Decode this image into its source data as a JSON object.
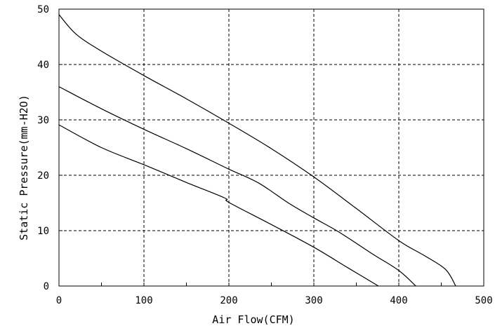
{
  "chart_data": {
    "type": "line",
    "title": "",
    "xlabel": "Air Flow(CFM)",
    "ylabel": "Static Pressure(mm-H2O)",
    "xlim": [
      0,
      500
    ],
    "ylim": [
      0,
      50
    ],
    "xticks": [
      "0",
      "100",
      "200",
      "300",
      "400",
      "500"
    ],
    "yticks": [
      "0",
      "10",
      "20",
      "30",
      "40",
      "50"
    ],
    "grid": true,
    "grid_style": "dashed",
    "line_color": "#000000",
    "series": [
      {
        "x": [
          0,
          20,
          50,
          100,
          150,
          200,
          250,
          300,
          350,
          400,
          430,
          455,
          467
        ],
        "y": [
          49,
          45.5,
          42.4,
          38,
          33.8,
          29.4,
          24.8,
          19.7,
          14,
          8.2,
          5.5,
          3,
          0
        ]
      },
      {
        "x": [
          0,
          50,
          100,
          150,
          200,
          235,
          270,
          300,
          330,
          370,
          400,
          420
        ],
        "y": [
          36,
          32,
          28.3,
          24.8,
          21.1,
          18.6,
          15,
          12.3,
          9.7,
          5.7,
          2.8,
          0
        ]
      },
      {
        "x": [
          0,
          50,
          100,
          150,
          195,
          200,
          250,
          300,
          340,
          376
        ],
        "y": [
          29.1,
          25,
          21.9,
          18.7,
          15.9,
          15.1,
          11.1,
          7,
          3.3,
          0
        ]
      }
    ]
  }
}
